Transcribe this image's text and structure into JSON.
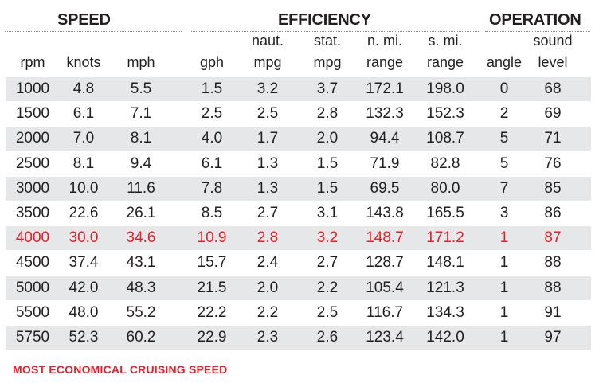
{
  "groups": {
    "speed": "SPEED",
    "efficiency": "EFFICIENCY",
    "operation": "OPERATION"
  },
  "headers": {
    "rpm": [
      "",
      "rpm"
    ],
    "knots": [
      "",
      "knots"
    ],
    "mph": [
      "",
      "mph"
    ],
    "gph": [
      "",
      "gph"
    ],
    "naut_mpg": [
      "naut.",
      "mpg"
    ],
    "stat_mpg": [
      "stat.",
      "mpg"
    ],
    "nmi_range": [
      "n. mi.",
      "range"
    ],
    "smi_range": [
      "s. mi.",
      "range"
    ],
    "angle": [
      "",
      "angle"
    ],
    "sound": [
      "sound",
      "level"
    ]
  },
  "chart_data": {
    "type": "table",
    "columns": [
      "rpm",
      "knots",
      "mph",
      "gph",
      "naut. mpg",
      "stat. mpg",
      "n. mi. range",
      "s. mi. range",
      "angle",
      "sound level"
    ],
    "rows": [
      [
        "1000",
        "4.8",
        "5.5",
        "1.5",
        "3.2",
        "3.7",
        "172.1",
        "198.0",
        "0",
        "68"
      ],
      [
        "1500",
        "6.1",
        "7.1",
        "2.5",
        "2.5",
        "2.8",
        "132.3",
        "152.3",
        "2",
        "69"
      ],
      [
        "2000",
        "7.0",
        "8.1",
        "4.0",
        "1.7",
        "2.0",
        "94.4",
        "108.7",
        "5",
        "71"
      ],
      [
        "2500",
        "8.1",
        "9.4",
        "6.1",
        "1.3",
        "1.5",
        "71.9",
        "82.8",
        "5",
        "76"
      ],
      [
        "3000",
        "10.0",
        "11.6",
        "7.8",
        "1.3",
        "1.5",
        "69.5",
        "80.0",
        "7",
        "85"
      ],
      [
        "3500",
        "22.6",
        "26.1",
        "8.5",
        "2.7",
        "3.1",
        "143.8",
        "165.5",
        "3",
        "86"
      ],
      [
        "4000",
        "30.0",
        "34.6",
        "10.9",
        "2.8",
        "3.2",
        "148.7",
        "171.2",
        "1",
        "87"
      ],
      [
        "4500",
        "37.4",
        "43.1",
        "15.7",
        "2.4",
        "2.7",
        "128.7",
        "148.1",
        "1",
        "88"
      ],
      [
        "5000",
        "42.0",
        "48.3",
        "21.5",
        "2.0",
        "2.2",
        "105.4",
        "121.3",
        "1",
        "88"
      ],
      [
        "5500",
        "48.0",
        "55.2",
        "22.2",
        "2.2",
        "2.5",
        "116.7",
        "134.3",
        "1",
        "91"
      ],
      [
        "5750",
        "52.3",
        "60.2",
        "22.9",
        "2.3",
        "2.6",
        "123.4",
        "142.0",
        "1",
        "97"
      ]
    ],
    "highlight_row_index": 6,
    "highlight_color": "#e3202b",
    "shade_color": "#e6e7e8"
  },
  "footnote": "MOST ECONOMICAL CRUISING SPEED"
}
